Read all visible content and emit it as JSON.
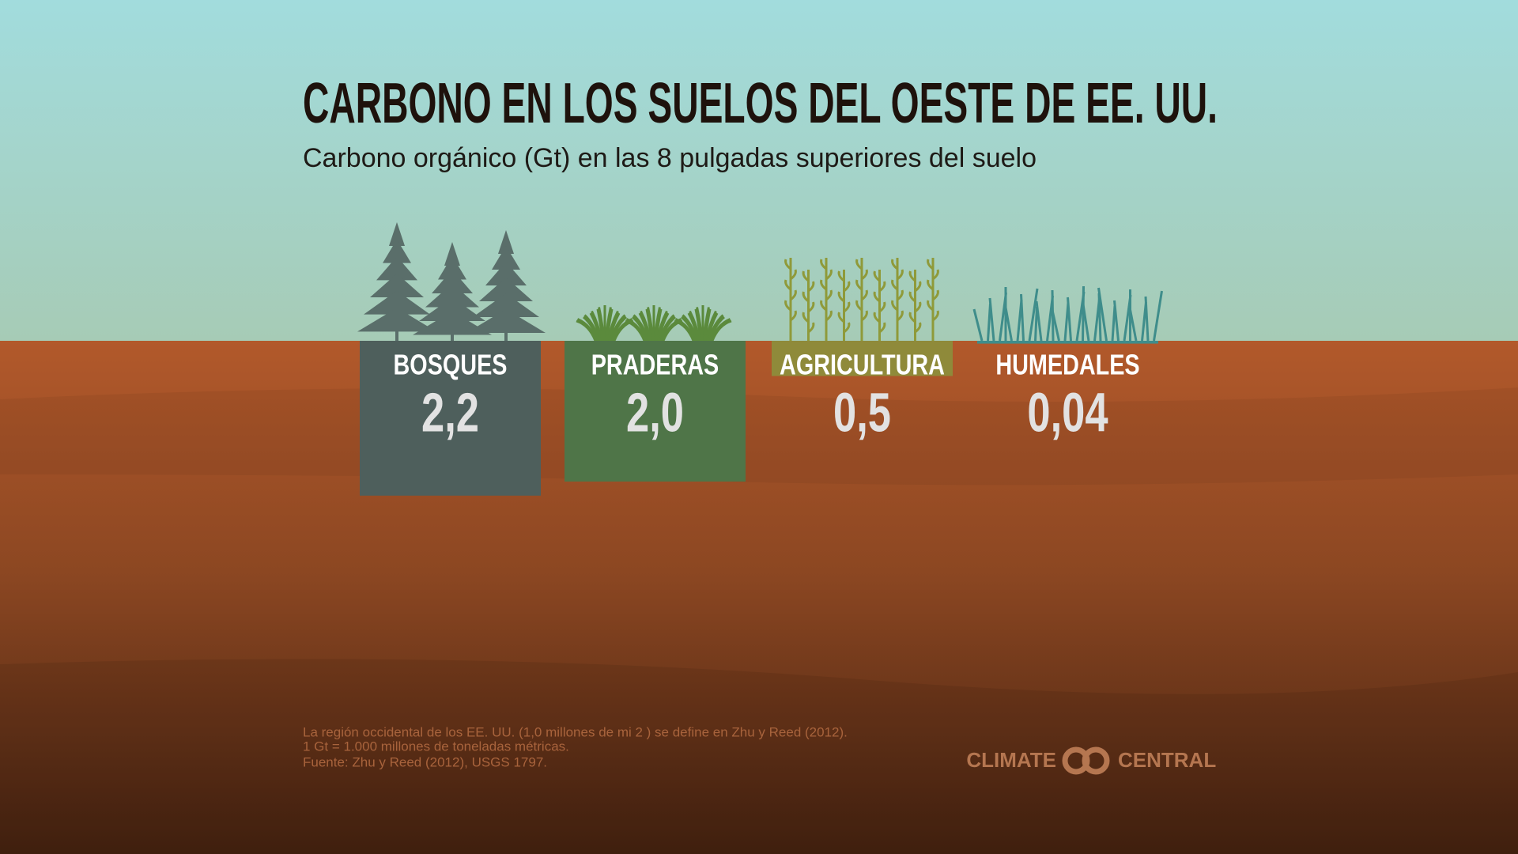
{
  "chart_data": {
    "type": "bar",
    "title": "CARBONO EN LOS SUELOS DEL OESTE DE EE. UU.",
    "subtitle": "Carbono orgánico (Gt) en las 8 pulgadas superiores del suelo",
    "categories": [
      "BOSQUES",
      "PRADERAS",
      "AGRICULTURA",
      "HUMEDALES"
    ],
    "values": [
      2.2,
      2.0,
      0.5,
      0.04
    ],
    "value_labels": [
      "2,2",
      "2,0",
      "0,5",
      "0,04"
    ],
    "colors": [
      "#4e5f5c",
      "#4f7548",
      "#8f8a3a",
      "#3f8d8b"
    ]
  },
  "notes": [
    "La región occidental de los EE. UU. (1,0 millones de mi 2 ) se define en Zhu y Reed (2012).",
    "1 Gt = 1.000 millones de toneladas métricas.",
    "Fuente: Zhu y Reed (2012), USGS 1797."
  ],
  "logo": {
    "left": "CLIMATE",
    "right": "CENTRAL"
  }
}
